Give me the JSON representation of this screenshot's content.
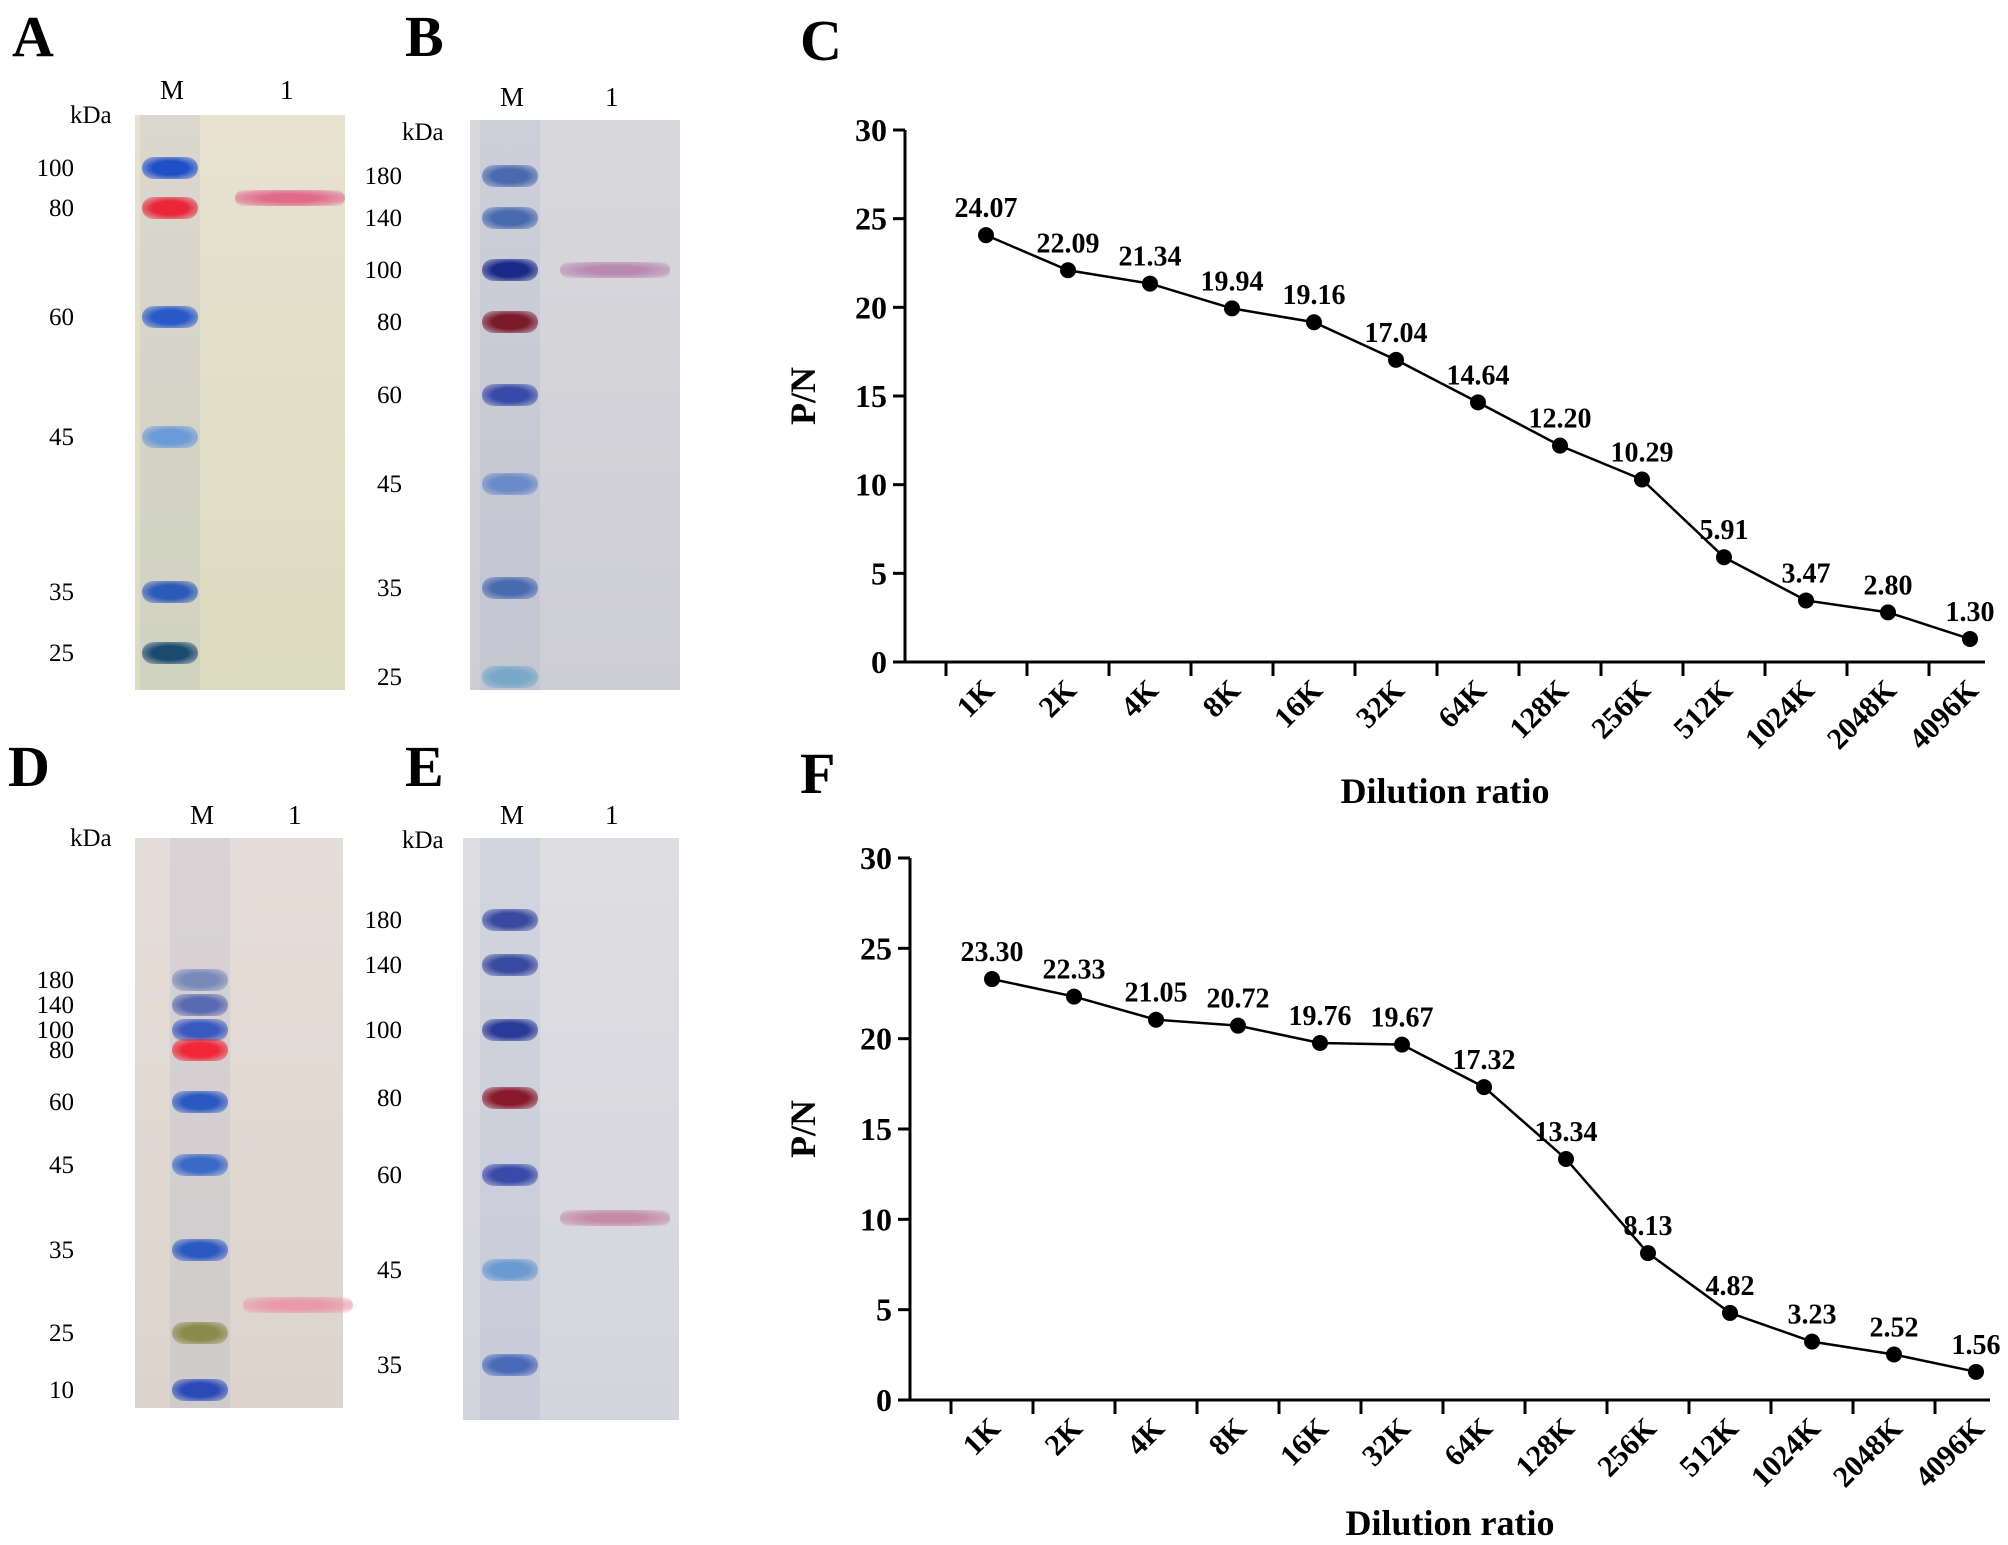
{
  "panels": {
    "A": "A",
    "B": "B",
    "C": "C",
    "D": "D",
    "E": "E",
    "F": "F"
  },
  "blots": [
    {
      "id": "A",
      "lane_labels": [
        "M",
        "1"
      ],
      "unit": "kDa",
      "markers": [
        "100",
        "80",
        "60",
        "45",
        "35",
        "25"
      ],
      "sample_band_kda": 80,
      "sample_color": "#e06a8a"
    },
    {
      "id": "B",
      "lane_labels": [
        "M",
        "1"
      ],
      "unit": "kDa",
      "markers": [
        "180",
        "140",
        "100",
        "80",
        "60",
        "45",
        "35",
        "25"
      ],
      "sample_band_kda": 100,
      "sample_color": "#b889b0"
    },
    {
      "id": "D",
      "lane_labels": [
        "M",
        "1"
      ],
      "unit": "kDa",
      "markers": [
        "180",
        "140",
        "100",
        "80",
        "60",
        "45",
        "35",
        "25",
        "10"
      ],
      "sample_band_kda": 28,
      "sample_color": "#e89aa8"
    },
    {
      "id": "E",
      "lane_labels": [
        "M",
        "1"
      ],
      "unit": "kDa",
      "markers": [
        "180",
        "140",
        "100",
        "80",
        "60",
        "45",
        "35"
      ],
      "sample_band_kda": 53,
      "sample_color": "#c48aa6"
    }
  ],
  "chart_data": [
    {
      "panel": "C",
      "type": "line",
      "xlabel": "Dilution ratio",
      "ylabel": "P/N",
      "categories": [
        "1K",
        "2K",
        "4K",
        "8K",
        "16K",
        "32K",
        "64K",
        "128K",
        "256K",
        "512K",
        "1024K",
        "2048K",
        "4096K"
      ],
      "values": [
        24.07,
        22.09,
        21.34,
        19.94,
        19.16,
        17.04,
        14.64,
        12.2,
        10.29,
        5.91,
        3.47,
        2.8,
        1.3
      ],
      "value_labels": [
        "24.07",
        "22.09",
        "21.34",
        "19.94",
        "19.16",
        "17.04",
        "14.64",
        "12.20",
        "10.29",
        "5.91",
        "3.47",
        "2.80",
        "1.30"
      ],
      "ylim": [
        0,
        30
      ],
      "yticks": [
        "0",
        "5",
        "10",
        "15",
        "20",
        "25",
        "30"
      ],
      "grid": false,
      "line_color": "#000000"
    },
    {
      "panel": "F",
      "type": "line",
      "xlabel": "Dilution ratio",
      "ylabel": "P/N",
      "categories": [
        "1K",
        "2K",
        "4K",
        "8K",
        "16K",
        "32K",
        "64K",
        "128K",
        "256K",
        "512K",
        "1024K",
        "2048K",
        "4096K"
      ],
      "values": [
        23.3,
        22.33,
        21.05,
        20.72,
        19.76,
        19.67,
        17.32,
        13.34,
        8.13,
        4.82,
        3.23,
        2.52,
        1.56
      ],
      "value_labels": [
        "23.30",
        "22.33",
        "21.05",
        "20.72",
        "19.76",
        "19.67",
        "17.32",
        "13.34",
        "8.13",
        "4.82",
        "3.23",
        "2.52",
        "1.56"
      ],
      "ylim": [
        0,
        30
      ],
      "yticks": [
        "0",
        "5",
        "10",
        "15",
        "20",
        "25",
        "30"
      ],
      "grid": false,
      "line_color": "#000000"
    }
  ]
}
